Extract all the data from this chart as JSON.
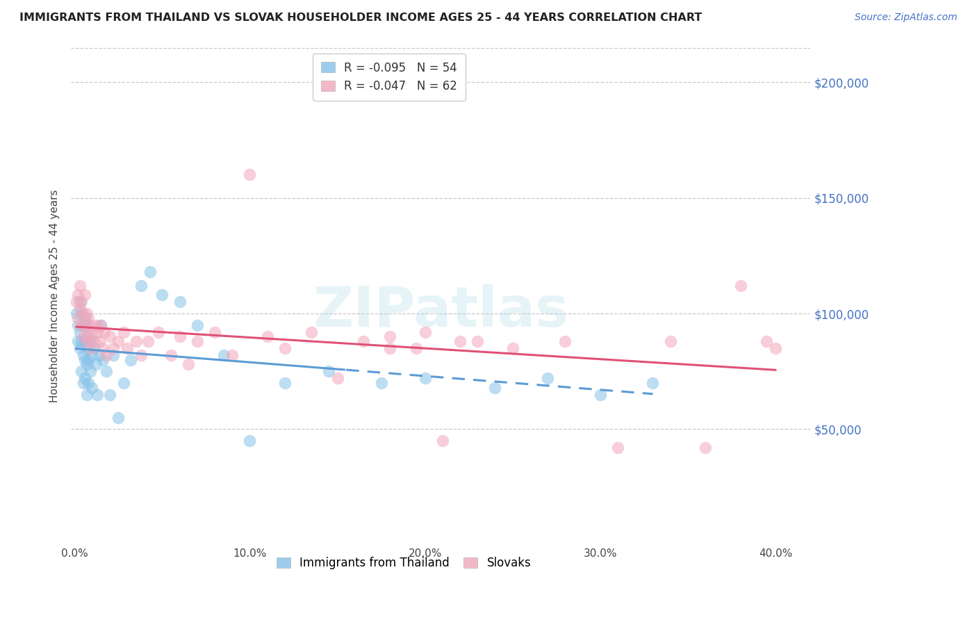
{
  "title": "IMMIGRANTS FROM THAILAND VS SLOVAK HOUSEHOLDER INCOME AGES 25 - 44 YEARS CORRELATION CHART",
  "source": "Source: ZipAtlas.com",
  "ylabel": "Householder Income Ages 25 - 44 years",
  "ytick_labels": [
    "$50,000",
    "$100,000",
    "$150,000",
    "$200,000"
  ],
  "ytick_vals": [
    50000,
    100000,
    150000,
    200000
  ],
  "ylim": [
    0,
    215000
  ],
  "xlim": [
    -0.002,
    0.42
  ],
  "thailand_R": -0.095,
  "thailand_N": 54,
  "slovak_R": -0.047,
  "slovak_N": 62,
  "legend_label1": "Immigrants from Thailand",
  "legend_label2": "Slovaks",
  "color_thailand": "#85C1E8",
  "color_slovak": "#F1A7BB",
  "trendline_thailand_color": "#5B9BD5",
  "trendline_slovak_color": "#E05075",
  "solid_cutoff_thai": 0.155,
  "watermark_text": "ZIPatlas",
  "thailand_x": [
    0.001,
    0.002,
    0.002,
    0.003,
    0.003,
    0.003,
    0.004,
    0.004,
    0.004,
    0.005,
    0.005,
    0.005,
    0.006,
    0.006,
    0.006,
    0.006,
    0.007,
    0.007,
    0.007,
    0.007,
    0.008,
    0.008,
    0.008,
    0.009,
    0.009,
    0.01,
    0.01,
    0.011,
    0.012,
    0.013,
    0.014,
    0.015,
    0.016,
    0.018,
    0.02,
    0.022,
    0.025,
    0.028,
    0.032,
    0.038,
    0.043,
    0.05,
    0.06,
    0.07,
    0.085,
    0.1,
    0.12,
    0.145,
    0.175,
    0.2,
    0.24,
    0.27,
    0.3,
    0.33
  ],
  "thailand_y": [
    100000,
    95000,
    88000,
    105000,
    92000,
    85000,
    100000,
    88000,
    75000,
    95000,
    82000,
    70000,
    98000,
    88000,
    80000,
    72000,
    95000,
    85000,
    78000,
    65000,
    90000,
    80000,
    70000,
    88000,
    75000,
    82000,
    68000,
    85000,
    78000,
    65000,
    82000,
    95000,
    80000,
    75000,
    65000,
    82000,
    55000,
    70000,
    80000,
    112000,
    118000,
    108000,
    105000,
    95000,
    82000,
    45000,
    70000,
    75000,
    70000,
    72000,
    68000,
    72000,
    65000,
    70000
  ],
  "slovak_x": [
    0.001,
    0.002,
    0.002,
    0.003,
    0.003,
    0.004,
    0.004,
    0.005,
    0.005,
    0.006,
    0.006,
    0.007,
    0.007,
    0.008,
    0.008,
    0.009,
    0.009,
    0.01,
    0.011,
    0.012,
    0.013,
    0.014,
    0.015,
    0.016,
    0.017,
    0.018,
    0.02,
    0.022,
    0.025,
    0.028,
    0.03,
    0.035,
    0.038,
    0.042,
    0.048,
    0.055,
    0.06,
    0.065,
    0.07,
    0.08,
    0.09,
    0.1,
    0.11,
    0.12,
    0.135,
    0.15,
    0.165,
    0.18,
    0.2,
    0.22,
    0.25,
    0.28,
    0.31,
    0.34,
    0.36,
    0.38,
    0.395,
    0.4,
    0.18,
    0.195,
    0.21,
    0.23
  ],
  "slovak_y": [
    105000,
    108000,
    98000,
    112000,
    102000,
    95000,
    105000,
    100000,
    90000,
    108000,
    95000,
    100000,
    88000,
    98000,
    90000,
    95000,
    85000,
    92000,
    88000,
    95000,
    92000,
    88000,
    95000,
    85000,
    92000,
    82000,
    90000,
    85000,
    88000,
    92000,
    85000,
    88000,
    82000,
    88000,
    92000,
    82000,
    90000,
    78000,
    88000,
    92000,
    82000,
    160000,
    90000,
    85000,
    92000,
    72000,
    88000,
    85000,
    92000,
    88000,
    85000,
    88000,
    42000,
    88000,
    42000,
    112000,
    88000,
    85000,
    90000,
    85000,
    45000,
    88000
  ]
}
